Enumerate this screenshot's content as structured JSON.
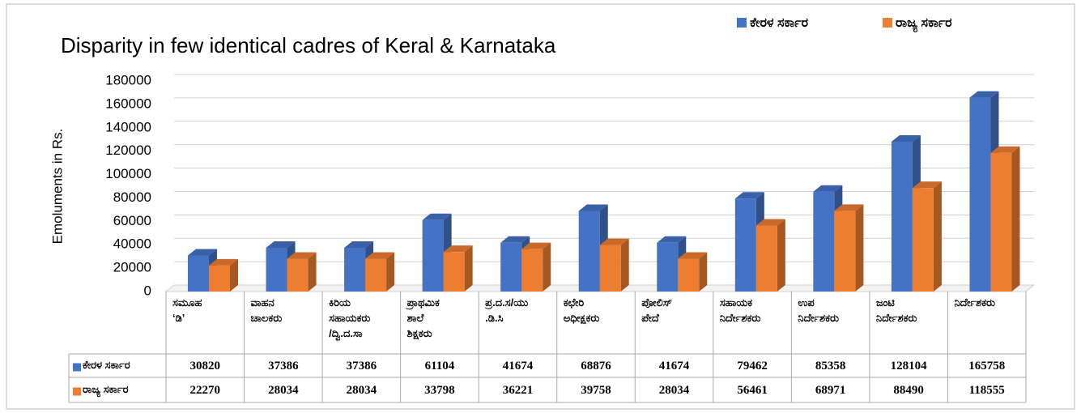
{
  "chart_data": {
    "type": "bar3d",
    "title": "Disparity in few identical cadres of Keral & Karnataka",
    "y_label": "Emoluments in Rs.",
    "categories": [
      "ಸಮೂಹ\n‘ಡಿ’",
      "ವಾಹನ\nಚಾಲಕರು",
      "ಕಿರಿಯ\nಸಹಾಯಕರು\n/ದ್ವಿ.ದ.ಸಾ",
      "ಪ್ರಾಥಮಿಕ\nಶಾಲೆ\nಶಿಕ್ಷಕರು",
      "ಪ್ರ.ದ.ಸ/ಯು\n.ಡಿ.ಸಿ",
      "ಕಛೇರಿ\nಅಧೀಕ್ಷಕರು",
      "ಪೋಲಿಸ್\nಪೇದೆ",
      "ಸಹಾಯಕ\nನಿರ್ದೇಶಕರು",
      "ಉಪ\nನಿರ್ದೇಶಕರು",
      "ಜಂಟಿ\nನಿರ್ದೇಶಕರು",
      "ನಿರ್ದೇಶಕರು"
    ],
    "series": [
      {
        "name": "ಕೇರಳ ಸರ್ಕಾರ",
        "color": "#4472c4",
        "values": [
          30820,
          37386,
          37386,
          61104,
          41674,
          68876,
          41674,
          79462,
          85358,
          128104,
          165758
        ]
      },
      {
        "name": "ರಾಜ್ಯ ಸರ್ಕಾರ",
        "color": "#ed7d31",
        "values": [
          22270,
          28034,
          28034,
          33798,
          36221,
          39758,
          28034,
          56461,
          68971,
          88490,
          118555
        ]
      }
    ],
    "ylim": [
      0,
      180000
    ],
    "yticks": [
      0,
      20000,
      40000,
      60000,
      80000,
      100000,
      120000,
      140000,
      160000,
      180000
    ],
    "grid": true,
    "legend": "top-right"
  }
}
